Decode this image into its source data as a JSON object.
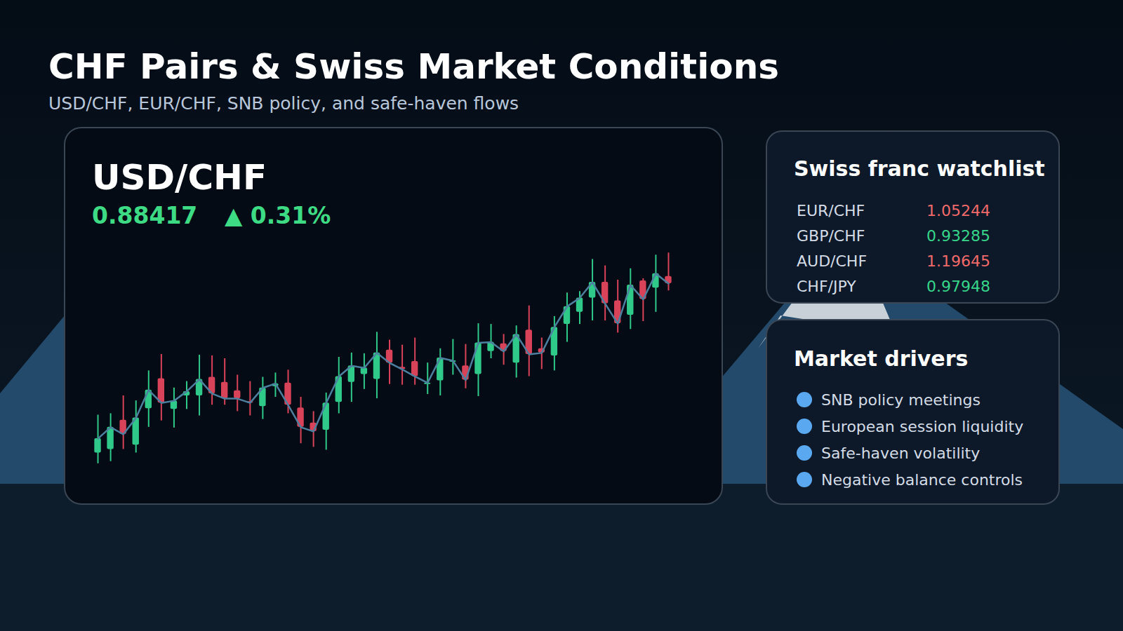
{
  "header": {
    "title": "CHF Pairs & Swiss Market Conditions",
    "subtitle": "USD/CHF, EUR/CHF, SNB policy, and safe-haven flows"
  },
  "chart_data": {
    "type": "candlestick",
    "title": "USD/CHF",
    "last": 0.88417,
    "change": {
      "value": 0.31,
      "label": "▲ 0.31%"
    },
    "open": [
      0.87232,
      0.87257,
      0.87462,
      0.87287,
      0.87542,
      0.87752,
      0.87537,
      0.87632,
      0.87632,
      0.87762,
      0.87727,
      0.87667,
      0.87592,
      0.87557,
      0.87697,
      0.87722,
      0.87547,
      0.87442,
      0.87392,
      0.87587,
      0.87727,
      0.87782,
      0.87747,
      0.87952,
      0.87832,
      0.87872,
      0.87712,
      0.87737,
      0.87867,
      0.87842,
      0.87782,
      0.87942,
      0.87997,
      0.87862,
      0.88092,
      0.87962,
      0.87912,
      0.88132,
      0.88217,
      0.88317,
      0.88427,
      0.88297,
      0.88197,
      0.88437,
      0.88387,
      0.88467
    ],
    "high": [
      0.87497,
      0.87507,
      0.87632,
      0.87597,
      0.87807,
      0.87922,
      0.87687,
      0.87732,
      0.87917,
      0.87912,
      0.87892,
      0.87777,
      0.87732,
      0.87762,
      0.87792,
      0.87812,
      0.87622,
      0.87522,
      0.87652,
      0.87902,
      0.87932,
      0.87927,
      0.88077,
      0.88022,
      0.87987,
      0.88037,
      0.87862,
      0.87962,
      0.88027,
      0.87992,
      0.88137,
      0.88132,
      0.88062,
      0.88122,
      0.88262,
      0.88037,
      0.88187,
      0.88352,
      0.88362,
      0.88587,
      0.88542,
      0.88442,
      0.88522,
      0.88452,
      0.88617,
      0.88632
    ],
    "low": [
      0.87157,
      0.87172,
      0.87257,
      0.87232,
      0.87412,
      0.87457,
      0.87407,
      0.87537,
      0.87492,
      0.87567,
      0.87567,
      0.87522,
      0.87492,
      0.87467,
      0.87622,
      0.87507,
      0.87297,
      0.87272,
      0.87252,
      0.87507,
      0.87587,
      0.87677,
      0.87612,
      0.87712,
      0.87707,
      0.87707,
      0.87642,
      0.87632,
      0.87777,
      0.87682,
      0.87627,
      0.87892,
      0.87847,
      0.87757,
      0.87767,
      0.87817,
      0.87807,
      0.88007,
      0.88132,
      0.88157,
      0.88157,
      0.88072,
      0.88097,
      0.88152,
      0.88217,
      0.88367
    ],
    "close": [
      0.87332,
      0.87412,
      0.87362,
      0.87477,
      0.87672,
      0.87582,
      0.87597,
      0.87662,
      0.87747,
      0.87647,
      0.87612,
      0.87612,
      0.87582,
      0.87687,
      0.87717,
      0.87567,
      0.87412,
      0.87382,
      0.87582,
      0.87767,
      0.87842,
      0.87827,
      0.87932,
      0.87862,
      0.87817,
      0.87767,
      0.87722,
      0.87897,
      0.87877,
      0.87742,
      0.88002,
      0.88007,
      0.87942,
      0.88062,
      0.87922,
      0.87932,
      0.88112,
      0.88257,
      0.88317,
      0.88427,
      0.88277,
      0.88137,
      0.88407,
      0.88307,
      0.88487,
      0.88417
    ],
    "ylim": [
      0.87097,
      0.88697
    ],
    "tick_labels": false,
    "grid": false
  },
  "watchlist": {
    "title": "Swiss franc watchlist",
    "rows": [
      {
        "pair": "EUR/CHF",
        "value": 1.05244,
        "color": "#f06a6a"
      },
      {
        "pair": "GBP/CHF",
        "value": 0.93285,
        "color": "#37d68a"
      },
      {
        "pair": "AUD/CHF",
        "value": 1.19645,
        "color": "#f06a6a"
      },
      {
        "pair": "CHF/JPY",
        "value": 0.97948,
        "color": "#37d68a"
      }
    ]
  },
  "drivers": {
    "title": "Market drivers",
    "items": [
      "SNB policy meetings",
      "European session liquidity",
      "Safe-haven volatility",
      "Negative balance controls"
    ]
  }
}
